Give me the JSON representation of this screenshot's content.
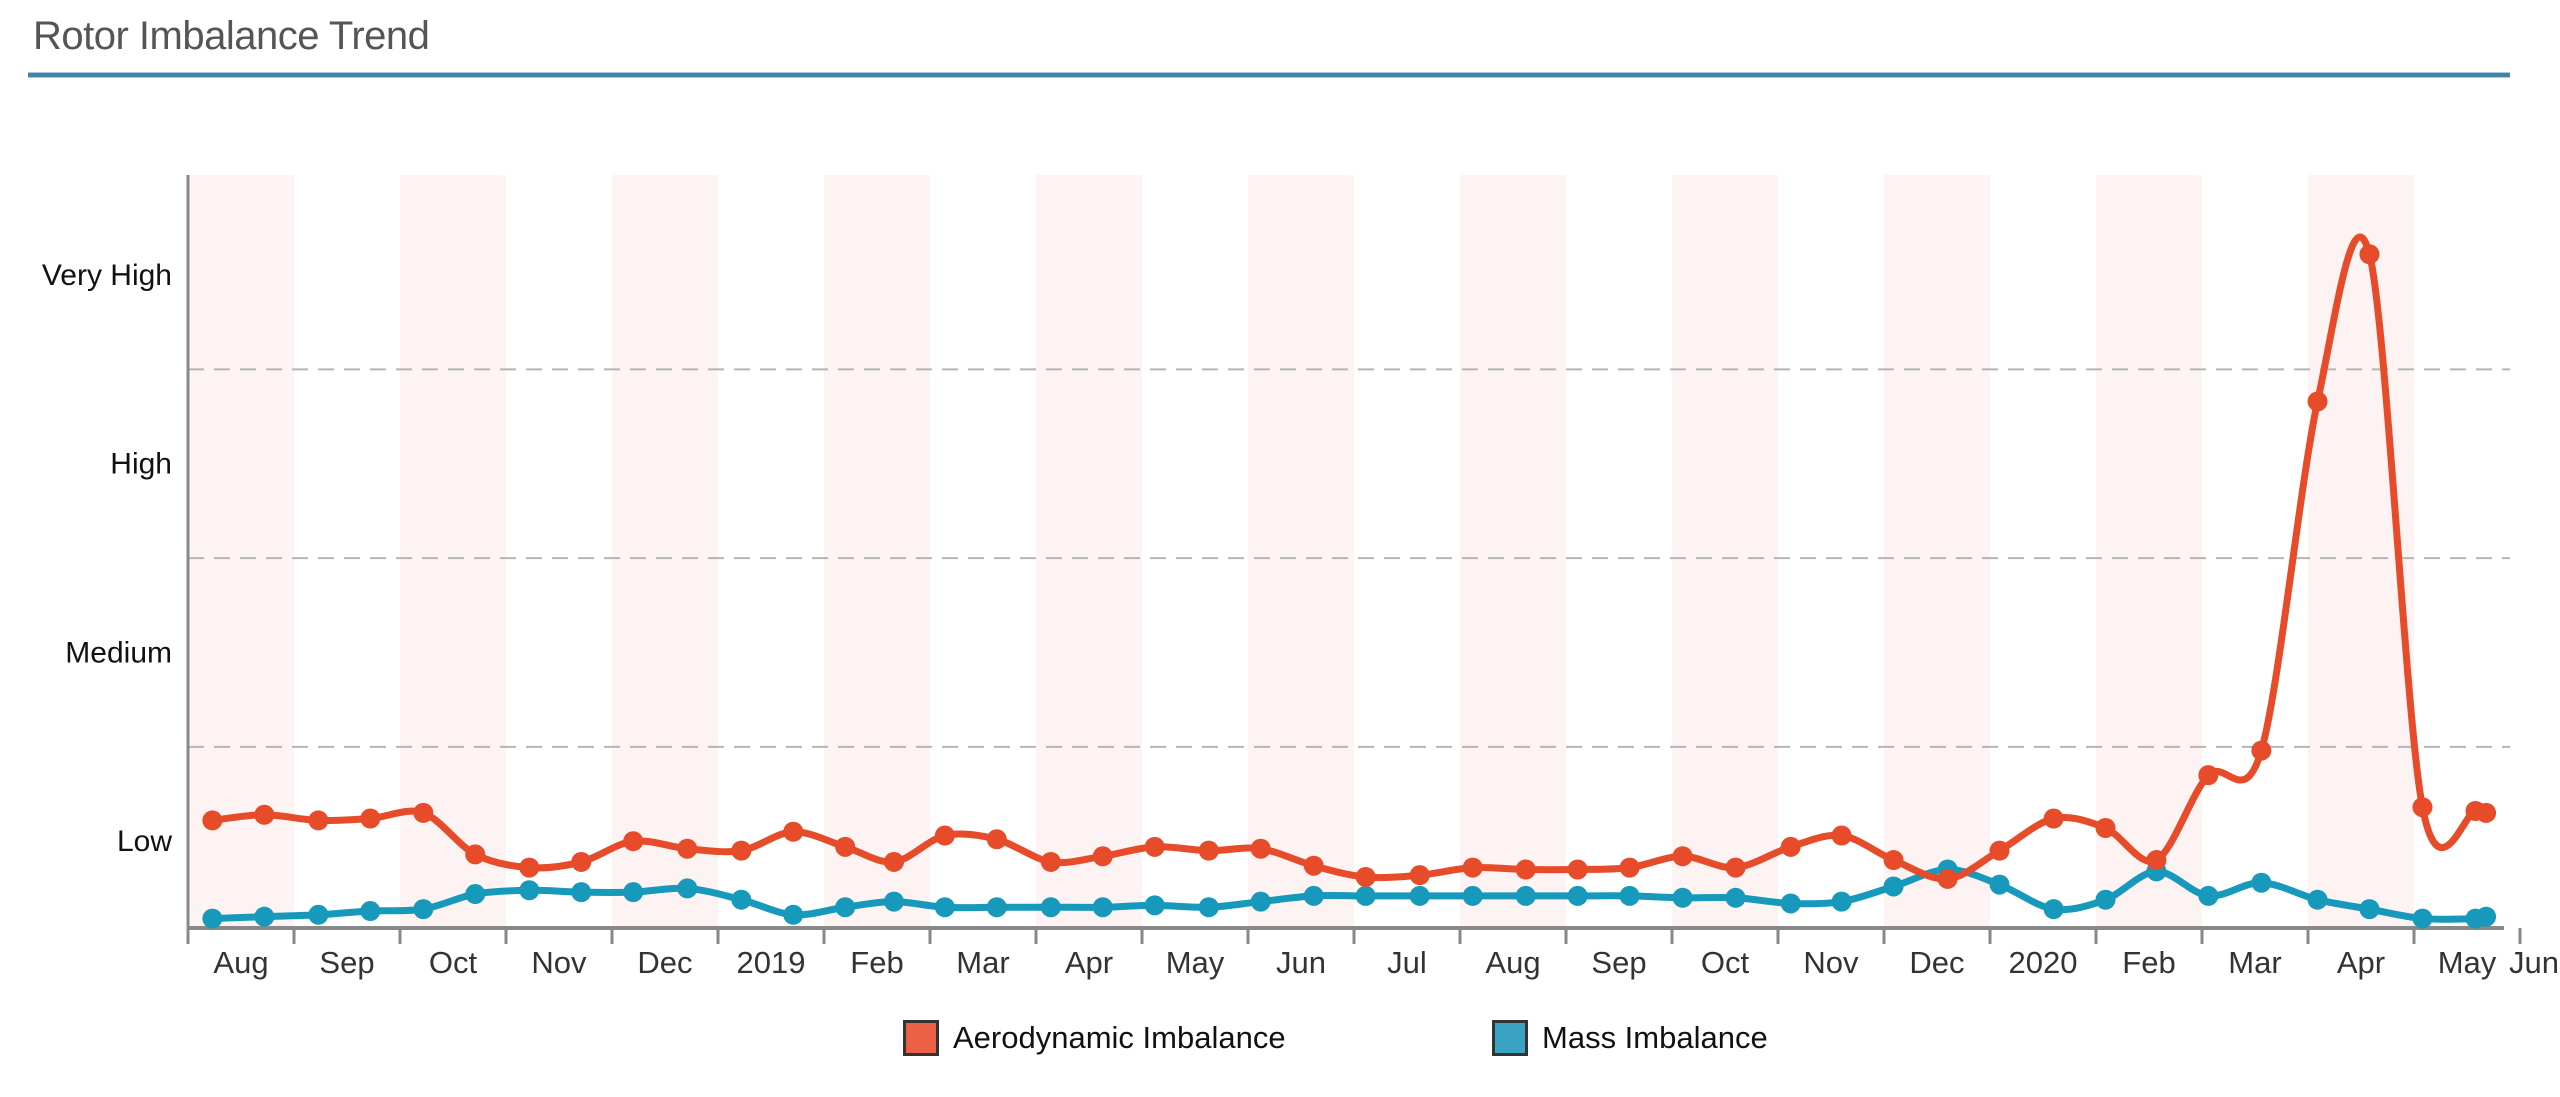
{
  "header": {
    "title": "Rotor Imbalance Trend"
  },
  "colors": {
    "aerodynamic": "#e64b2a",
    "mass": "#1799bb",
    "aerodynamic_legend": "#ec6145",
    "mass_legend": "#3aa2c2",
    "band": "#fdf3f2",
    "grid": "#b5b5b5",
    "axis": "#888888",
    "title_rule": "#4682a8"
  },
  "chart_data": {
    "type": "line",
    "title": "Rotor Imbalance Trend",
    "xlabel": "",
    "ylabel": "",
    "x_unit": "months since Aug 2018",
    "xlim": [
      0,
      21.9
    ],
    "ylim": [
      0.54,
      4.53
    ],
    "y_ticks": [
      {
        "value": 1,
        "label": "Low"
      },
      {
        "value": 2,
        "label": "Medium"
      },
      {
        "value": 3,
        "label": "High"
      },
      {
        "value": 4,
        "label": "Very High"
      }
    ],
    "gridlines_at": [
      1.5,
      2.5,
      3.5
    ],
    "grid": true,
    "x_ticks": [
      {
        "value": 0,
        "label": "Aug"
      },
      {
        "value": 1,
        "label": "Sep"
      },
      {
        "value": 2,
        "label": "Oct"
      },
      {
        "value": 3,
        "label": "Nov"
      },
      {
        "value": 4,
        "label": "Dec"
      },
      {
        "value": 5,
        "label": "2019"
      },
      {
        "value": 6,
        "label": "Feb"
      },
      {
        "value": 7,
        "label": "Mar"
      },
      {
        "value": 8,
        "label": "Apr"
      },
      {
        "value": 9,
        "label": "May"
      },
      {
        "value": 10,
        "label": "Jun"
      },
      {
        "value": 11,
        "label": "Jul"
      },
      {
        "value": 12,
        "label": "Aug"
      },
      {
        "value": 13,
        "label": "Sep"
      },
      {
        "value": 14,
        "label": "Oct"
      },
      {
        "value": 15,
        "label": "Nov"
      },
      {
        "value": 16,
        "label": "Dec"
      },
      {
        "value": 17,
        "label": "2020"
      },
      {
        "value": 18,
        "label": "Feb"
      },
      {
        "value": 19,
        "label": "Mar"
      },
      {
        "value": 20,
        "label": "Apr"
      },
      {
        "value": 21,
        "label": "May"
      },
      {
        "value": 22,
        "label": "Jun"
      }
    ],
    "shaded_months": [
      0,
      2,
      4,
      6,
      8,
      10,
      12,
      14,
      16,
      18,
      20
    ],
    "x": [
      0.23,
      0.72,
      1.23,
      1.72,
      2.22,
      2.71,
      3.22,
      3.71,
      4.2,
      4.71,
      5.22,
      5.71,
      6.2,
      6.66,
      7.14,
      7.63,
      8.14,
      8.63,
      9.12,
      9.63,
      10.12,
      10.62,
      11.11,
      11.62,
      12.12,
      12.62,
      13.11,
      13.6,
      14.1,
      14.6,
      15.12,
      15.6,
      16.09,
      16.6,
      17.09,
      17.6,
      18.09,
      18.57,
      19.06,
      19.56,
      20.09,
      20.58,
      21.08,
      21.58,
      21.68
    ],
    "series": [
      {
        "name": "Aerodynamic Imbalance",
        "values": [
          1.11,
          1.14,
          1.11,
          1.12,
          1.15,
          0.93,
          0.86,
          0.89,
          1.0,
          0.96,
          0.95,
          1.05,
          0.97,
          0.89,
          1.03,
          1.01,
          0.89,
          0.92,
          0.97,
          0.95,
          0.96,
          0.87,
          0.81,
          0.82,
          0.86,
          0.85,
          0.85,
          0.86,
          0.92,
          0.86,
          0.97,
          1.03,
          0.9,
          0.8,
          0.95,
          1.12,
          1.07,
          0.9,
          1.35,
          1.48,
          3.33,
          4.11,
          1.18,
          1.16,
          1.15
        ]
      },
      {
        "name": "Mass Imbalance",
        "values": [
          0.59,
          0.6,
          0.61,
          0.63,
          0.64,
          0.72,
          0.74,
          0.73,
          0.73,
          0.75,
          0.69,
          0.61,
          0.65,
          0.68,
          0.65,
          0.65,
          0.65,
          0.65,
          0.66,
          0.65,
          0.68,
          0.71,
          0.71,
          0.71,
          0.71,
          0.71,
          0.71,
          0.71,
          0.7,
          0.7,
          0.67,
          0.68,
          0.76,
          0.85,
          0.77,
          0.64,
          0.69,
          0.84,
          0.71,
          0.78,
          0.69,
          0.64,
          0.59,
          0.59,
          0.6
        ]
      }
    ],
    "legend": [
      "Aerodynamic Imbalance",
      "Mass Imbalance"
    ],
    "legend_position": "bottom-center"
  }
}
